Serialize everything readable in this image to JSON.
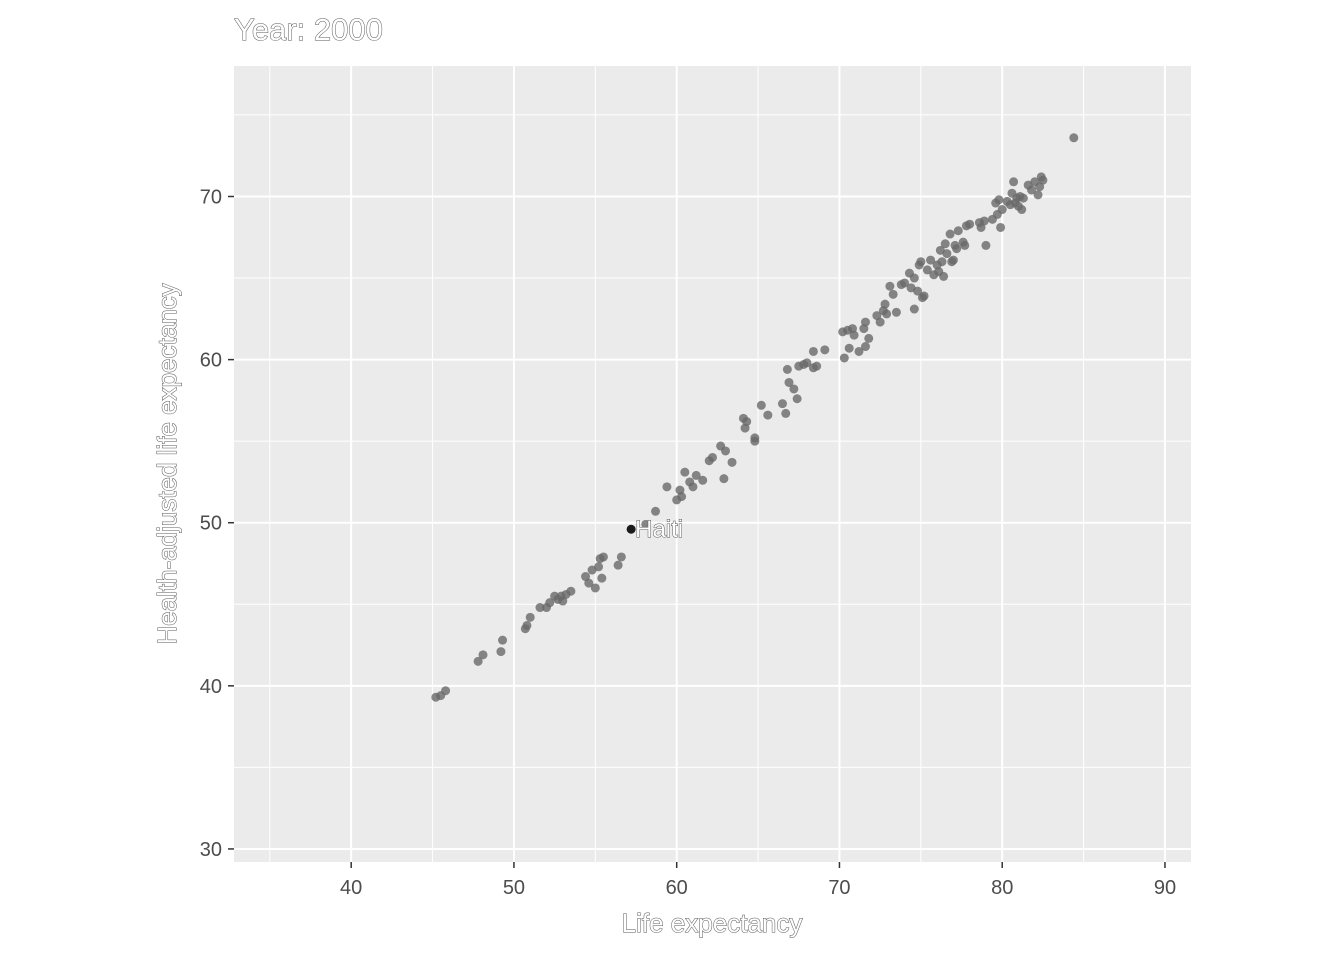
{
  "chart_data": {
    "type": "scatter",
    "title": "Year: 2000",
    "xlabel": "Life expectancy",
    "ylabel": "Health-adjusted life expectancy",
    "xlim": [
      32.8,
      91.6
    ],
    "ylim": [
      29.2,
      78.0
    ],
    "xticks": [
      40,
      50,
      60,
      70,
      80,
      90
    ],
    "yticks": [
      30,
      40,
      50,
      60,
      70
    ],
    "xtick_labels": [
      "40",
      "50",
      "60",
      "70",
      "80",
      "90"
    ],
    "ytick_labels": [
      "30",
      "40",
      "50",
      "60",
      "70"
    ],
    "grid": true,
    "background": "#ebebeb",
    "point_color": "#696969",
    "highlight_color": "#1a1a1a",
    "highlight": {
      "name": "Haiti",
      "x": 57.2,
      "y": 49.6
    },
    "points": [
      [
        45.2,
        39.3
      ],
      [
        45.5,
        39.4
      ],
      [
        45.8,
        39.7
      ],
      [
        47.8,
        41.5
      ],
      [
        48.1,
        41.9
      ],
      [
        49.2,
        42.1
      ],
      [
        49.3,
        42.8
      ],
      [
        50.7,
        43.5
      ],
      [
        50.8,
        43.7
      ],
      [
        51.0,
        44.2
      ],
      [
        51.6,
        44.8
      ],
      [
        52.0,
        44.8
      ],
      [
        52.2,
        45.1
      ],
      [
        52.5,
        45.5
      ],
      [
        52.7,
        45.3
      ],
      [
        52.9,
        45.5
      ],
      [
        53.0,
        45.2
      ],
      [
        53.2,
        45.6
      ],
      [
        53.5,
        45.8
      ],
      [
        54.4,
        46.7
      ],
      [
        54.6,
        46.3
      ],
      [
        54.8,
        47.1
      ],
      [
        55.0,
        46.0
      ],
      [
        55.2,
        47.3
      ],
      [
        55.3,
        47.8
      ],
      [
        55.5,
        47.9
      ],
      [
        55.4,
        46.6
      ],
      [
        56.4,
        47.4
      ],
      [
        56.6,
        47.9
      ],
      [
        58.1,
        49.9
      ],
      [
        58.7,
        50.7
      ],
      [
        59.4,
        52.2
      ],
      [
        60.0,
        51.4
      ],
      [
        60.2,
        52.0
      ],
      [
        60.3,
        51.6
      ],
      [
        60.5,
        53.1
      ],
      [
        60.8,
        52.5
      ],
      [
        61.0,
        52.2
      ],
      [
        61.2,
        52.9
      ],
      [
        61.6,
        52.6
      ],
      [
        62.0,
        53.8
      ],
      [
        62.2,
        54.0
      ],
      [
        62.7,
        54.7
      ],
      [
        63.0,
        54.4
      ],
      [
        62.9,
        52.7
      ],
      [
        63.4,
        53.7
      ],
      [
        64.1,
        56.4
      ],
      [
        64.3,
        56.2
      ],
      [
        64.2,
        55.8
      ],
      [
        64.8,
        55.0
      ],
      [
        64.8,
        55.2
      ],
      [
        65.2,
        57.2
      ],
      [
        65.6,
        56.6
      ],
      [
        66.5,
        57.3
      ],
      [
        66.7,
        56.7
      ],
      [
        66.8,
        59.4
      ],
      [
        66.9,
        58.6
      ],
      [
        67.2,
        58.2
      ],
      [
        67.4,
        57.6
      ],
      [
        67.5,
        59.6
      ],
      [
        67.8,
        59.7
      ],
      [
        68.0,
        59.8
      ],
      [
        68.4,
        60.5
      ],
      [
        68.4,
        59.5
      ],
      [
        68.6,
        59.6
      ],
      [
        69.1,
        60.6
      ],
      [
        70.2,
        61.7
      ],
      [
        70.3,
        60.1
      ],
      [
        70.5,
        61.8
      ],
      [
        70.6,
        60.7
      ],
      [
        70.8,
        61.9
      ],
      [
        70.9,
        61.5
      ],
      [
        71.2,
        60.5
      ],
      [
        71.5,
        61.9
      ],
      [
        71.6,
        62.3
      ],
      [
        71.6,
        60.8
      ],
      [
        71.8,
        61.3
      ],
      [
        72.3,
        62.7
      ],
      [
        72.5,
        62.3
      ],
      [
        72.7,
        63.0
      ],
      [
        72.8,
        63.4
      ],
      [
        72.9,
        62.8
      ],
      [
        73.1,
        64.5
      ],
      [
        73.3,
        64.0
      ],
      [
        73.5,
        62.9
      ],
      [
        73.8,
        64.6
      ],
      [
        74.0,
        64.7
      ],
      [
        74.3,
        65.3
      ],
      [
        74.4,
        64.4
      ],
      [
        74.6,
        63.1
      ],
      [
        74.6,
        65.0
      ],
      [
        74.8,
        64.2
      ],
      [
        74.9,
        65.8
      ],
      [
        75.0,
        66.0
      ],
      [
        75.1,
        63.8
      ],
      [
        75.2,
        63.9
      ],
      [
        75.4,
        65.5
      ],
      [
        75.6,
        66.1
      ],
      [
        75.8,
        65.2
      ],
      [
        76.0,
        65.8
      ],
      [
        76.1,
        65.4
      ],
      [
        76.2,
        66.7
      ],
      [
        76.3,
        66.0
      ],
      [
        76.4,
        65.1
      ],
      [
        76.5,
        67.1
      ],
      [
        76.6,
        66.5
      ],
      [
        76.8,
        67.7
      ],
      [
        76.9,
        66.0
      ],
      [
        77.0,
        66.1
      ],
      [
        77.1,
        67.0
      ],
      [
        77.2,
        66.8
      ],
      [
        77.3,
        67.9
      ],
      [
        77.6,
        67.2
      ],
      [
        77.7,
        67.0
      ],
      [
        77.8,
        68.2
      ],
      [
        78.0,
        68.3
      ],
      [
        78.6,
        68.4
      ],
      [
        78.7,
        68.1
      ],
      [
        78.9,
        68.5
      ],
      [
        79.0,
        67.0
      ],
      [
        79.4,
        68.6
      ],
      [
        79.6,
        69.6
      ],
      [
        79.7,
        68.9
      ],
      [
        79.8,
        69.8
      ],
      [
        79.9,
        68.1
      ],
      [
        80.0,
        69.2
      ],
      [
        80.3,
        69.7
      ],
      [
        80.5,
        69.5
      ],
      [
        80.6,
        70.2
      ],
      [
        80.7,
        70.9
      ],
      [
        80.8,
        69.6
      ],
      [
        80.9,
        69.9
      ],
      [
        81.0,
        69.4
      ],
      [
        81.1,
        70.0
      ],
      [
        81.2,
        69.2
      ],
      [
        81.3,
        69.9
      ],
      [
        81.6,
        70.7
      ],
      [
        81.8,
        70.4
      ],
      [
        82.0,
        70.9
      ],
      [
        82.2,
        70.1
      ],
      [
        82.3,
        70.6
      ],
      [
        82.5,
        71.0
      ],
      [
        82.4,
        71.2
      ],
      [
        84.4,
        73.6
      ]
    ]
  }
}
